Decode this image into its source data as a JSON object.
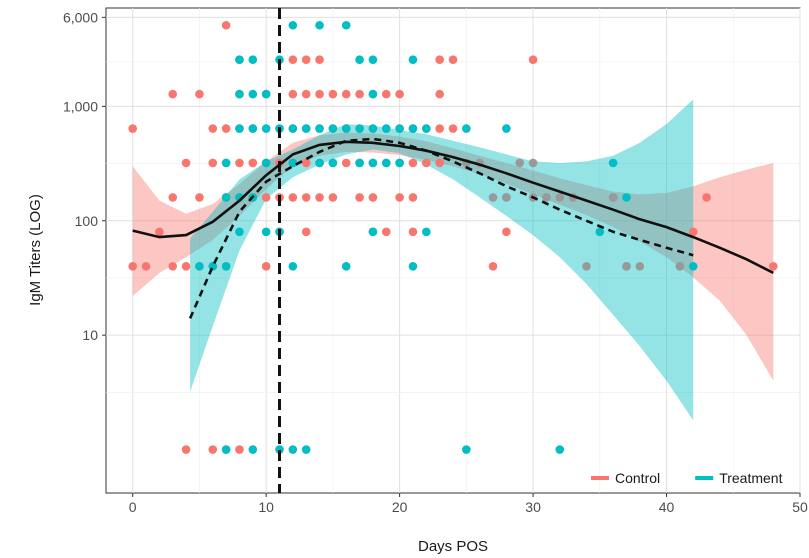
{
  "chart_data": {
    "type": "scatter",
    "xlabel": "Days POS",
    "ylabel": "IgM Titers (LOG)",
    "x_range": [
      -2,
      50
    ],
    "y_range_log10": [
      -0.38,
      3.86
    ],
    "y_scale": "log",
    "x_ticks": [
      0,
      10,
      20,
      30,
      40,
      50
    ],
    "y_ticks": [
      {
        "value": 10,
        "label": "10"
      },
      {
        "value": 100,
        "label": "100"
      },
      {
        "value": 1000,
        "label": "1,000"
      },
      {
        "value": 6000,
        "label": "6,000"
      }
    ],
    "grid": true,
    "legend": {
      "position": "bottom-right",
      "items": [
        {
          "name": "Control",
          "color": "#F8766D"
        },
        {
          "name": "Treatment",
          "color": "#00BFC4"
        }
      ]
    },
    "vline": {
      "x": 11,
      "style": "dashed"
    },
    "series": [
      {
        "name": "Control",
        "color": "#F8766D",
        "points": [
          [
            0,
            640
          ],
          [
            0,
            40
          ],
          [
            1,
            40
          ],
          [
            2,
            80
          ],
          [
            3,
            1280
          ],
          [
            3,
            160
          ],
          [
            3,
            40
          ],
          [
            4,
            320
          ],
          [
            4,
            40
          ],
          [
            4,
            1
          ],
          [
            5,
            1280
          ],
          [
            5,
            160
          ],
          [
            5,
            40
          ],
          [
            6,
            640
          ],
          [
            6,
            320
          ],
          [
            6,
            40
          ],
          [
            6,
            1
          ],
          [
            7,
            5120
          ],
          [
            7,
            640
          ],
          [
            7,
            320
          ],
          [
            7,
            160
          ],
          [
            7,
            40
          ],
          [
            7,
            1
          ],
          [
            8,
            2560
          ],
          [
            8,
            1280
          ],
          [
            8,
            640
          ],
          [
            8,
            320
          ],
          [
            8,
            160
          ],
          [
            8,
            1
          ],
          [
            9,
            640
          ],
          [
            9,
            320
          ],
          [
            9,
            160
          ],
          [
            10,
            1280
          ],
          [
            10,
            320
          ],
          [
            10,
            160
          ],
          [
            10,
            40
          ],
          [
            11,
            640
          ],
          [
            11,
            320
          ],
          [
            11,
            160
          ],
          [
            11,
            80
          ],
          [
            12,
            2560
          ],
          [
            12,
            1280
          ],
          [
            12,
            640
          ],
          [
            12,
            320
          ],
          [
            12,
            160
          ],
          [
            13,
            2560
          ],
          [
            13,
            1280
          ],
          [
            13,
            640
          ],
          [
            13,
            320
          ],
          [
            13,
            160
          ],
          [
            13,
            80
          ],
          [
            14,
            2560
          ],
          [
            14,
            1280
          ],
          [
            14,
            640
          ],
          [
            14,
            320
          ],
          [
            14,
            160
          ],
          [
            15,
            1280
          ],
          [
            15,
            640
          ],
          [
            15,
            320
          ],
          [
            15,
            160
          ],
          [
            16,
            1280
          ],
          [
            16,
            640
          ],
          [
            16,
            320
          ],
          [
            17,
            1280
          ],
          [
            17,
            640
          ],
          [
            17,
            320
          ],
          [
            17,
            160
          ],
          [
            18,
            1280
          ],
          [
            18,
            640
          ],
          [
            18,
            320
          ],
          [
            18,
            160
          ],
          [
            18,
            80
          ],
          [
            19,
            1280
          ],
          [
            19,
            640
          ],
          [
            19,
            320
          ],
          [
            19,
            80
          ],
          [
            20,
            1280
          ],
          [
            20,
            640
          ],
          [
            20,
            320
          ],
          [
            20,
            160
          ],
          [
            21,
            640
          ],
          [
            21,
            320
          ],
          [
            21,
            160
          ],
          [
            21,
            80
          ],
          [
            22,
            640
          ],
          [
            22,
            320
          ],
          [
            23,
            2560
          ],
          [
            23,
            1280
          ],
          [
            23,
            640
          ],
          [
            23,
            320
          ],
          [
            24,
            2560
          ],
          [
            24,
            640
          ],
          [
            27,
            40
          ],
          [
            28,
            80
          ],
          [
            30,
            2560
          ],
          [
            42,
            80
          ],
          [
            43,
            160
          ],
          [
            48,
            40
          ]
        ]
      },
      {
        "name": "Treatment",
        "color": "#00BFC4",
        "points": [
          [
            5,
            40
          ],
          [
            6,
            40
          ],
          [
            7,
            320
          ],
          [
            7,
            160
          ],
          [
            7,
            40
          ],
          [
            7,
            1
          ],
          [
            8,
            2560
          ],
          [
            8,
            1280
          ],
          [
            8,
            640
          ],
          [
            8,
            160
          ],
          [
            8,
            80
          ],
          [
            9,
            2560
          ],
          [
            9,
            1280
          ],
          [
            9,
            640
          ],
          [
            9,
            160
          ],
          [
            9,
            1
          ],
          [
            10,
            1280
          ],
          [
            10,
            640
          ],
          [
            10,
            320
          ],
          [
            10,
            80
          ],
          [
            11,
            2560
          ],
          [
            11,
            640
          ],
          [
            11,
            80
          ],
          [
            11,
            1
          ],
          [
            12,
            5120
          ],
          [
            12,
            640
          ],
          [
            12,
            320
          ],
          [
            12,
            40
          ],
          [
            12,
            1
          ],
          [
            13,
            640
          ],
          [
            13,
            1
          ],
          [
            14,
            5120
          ],
          [
            14,
            640
          ],
          [
            14,
            320
          ],
          [
            15,
            640
          ],
          [
            15,
            320
          ],
          [
            16,
            5120
          ],
          [
            16,
            640
          ],
          [
            16,
            40
          ],
          [
            17,
            2560
          ],
          [
            17,
            640
          ],
          [
            17,
            320
          ],
          [
            18,
            2560
          ],
          [
            18,
            1280
          ],
          [
            18,
            640
          ],
          [
            18,
            320
          ],
          [
            18,
            80
          ],
          [
            19,
            640
          ],
          [
            19,
            320
          ],
          [
            20,
            640
          ],
          [
            20,
            320
          ],
          [
            21,
            2560
          ],
          [
            21,
            640
          ],
          [
            21,
            40
          ],
          [
            22,
            640
          ],
          [
            22,
            80
          ],
          [
            25,
            640
          ],
          [
            25,
            1
          ],
          [
            28,
            640
          ],
          [
            28,
            160
          ],
          [
            32,
            1
          ],
          [
            35,
            80
          ],
          [
            36,
            320
          ],
          [
            36,
            160
          ],
          [
            37,
            160
          ],
          [
            37,
            40
          ],
          [
            41,
            40
          ],
          [
            42,
            40
          ]
        ]
      },
      {
        "name": "Combined",
        "color": "#999999",
        "points": [
          [
            25,
            320
          ],
          [
            26,
            320
          ],
          [
            27,
            160
          ],
          [
            28,
            160
          ],
          [
            29,
            320
          ],
          [
            30,
            320
          ],
          [
            30,
            160
          ],
          [
            31,
            160
          ],
          [
            32,
            160
          ],
          [
            33,
            160
          ],
          [
            34,
            40
          ],
          [
            36,
            160
          ],
          [
            37,
            40
          ],
          [
            38,
            40
          ],
          [
            41,
            40
          ]
        ]
      }
    ],
    "fits": [
      {
        "name": "Control",
        "color": "#F8766D",
        "style": "solid",
        "x": [
          0,
          2,
          4,
          6,
          8,
          10,
          12,
          14,
          16,
          18,
          20,
          22,
          24,
          26,
          28,
          30,
          32,
          34,
          36,
          38,
          40,
          42,
          44,
          46,
          48
        ],
        "y": [
          82,
          72,
          75,
          98,
          150,
          250,
          380,
          460,
          490,
          480,
          450,
          410,
          360,
          310,
          260,
          215,
          180,
          150,
          125,
          103,
          88,
          72,
          58,
          46,
          35
        ],
        "lo": [
          22,
          35,
          48,
          68,
          110,
          190,
          300,
          370,
          400,
          395,
          375,
          340,
          300,
          255,
          210,
          170,
          138,
          112,
          88,
          66,
          48,
          32,
          20,
          10,
          4
        ],
        "hi": [
          300,
          150,
          115,
          140,
          210,
          330,
          480,
          560,
          590,
          580,
          545,
          495,
          430,
          370,
          320,
          275,
          235,
          205,
          180,
          170,
          175,
          200,
          240,
          280,
          320
        ]
      },
      {
        "name": "Treatment",
        "color": "#00BFC4",
        "style": "dashed",
        "x": [
          4.3,
          6,
          8,
          10,
          12,
          14,
          16,
          18,
          20,
          22,
          24,
          26,
          28,
          30,
          32,
          34,
          36,
          38,
          40,
          42
        ],
        "y": [
          14,
          40,
          120,
          220,
          300,
          400,
          500,
          520,
          480,
          410,
          330,
          260,
          200,
          160,
          125,
          100,
          80,
          68,
          58,
          50
        ],
        "lo": [
          3.2,
          12,
          55,
          155,
          240,
          310,
          380,
          420,
          390,
          310,
          230,
          160,
          110,
          75,
          48,
          28,
          15,
          8,
          4,
          1.8
        ],
        "hi": [
          70,
          120,
          230,
          330,
          420,
          560,
          700,
          680,
          620,
          570,
          500,
          440,
          380,
          330,
          320,
          330,
          370,
          480,
          700,
          1150
        ]
      }
    ]
  }
}
